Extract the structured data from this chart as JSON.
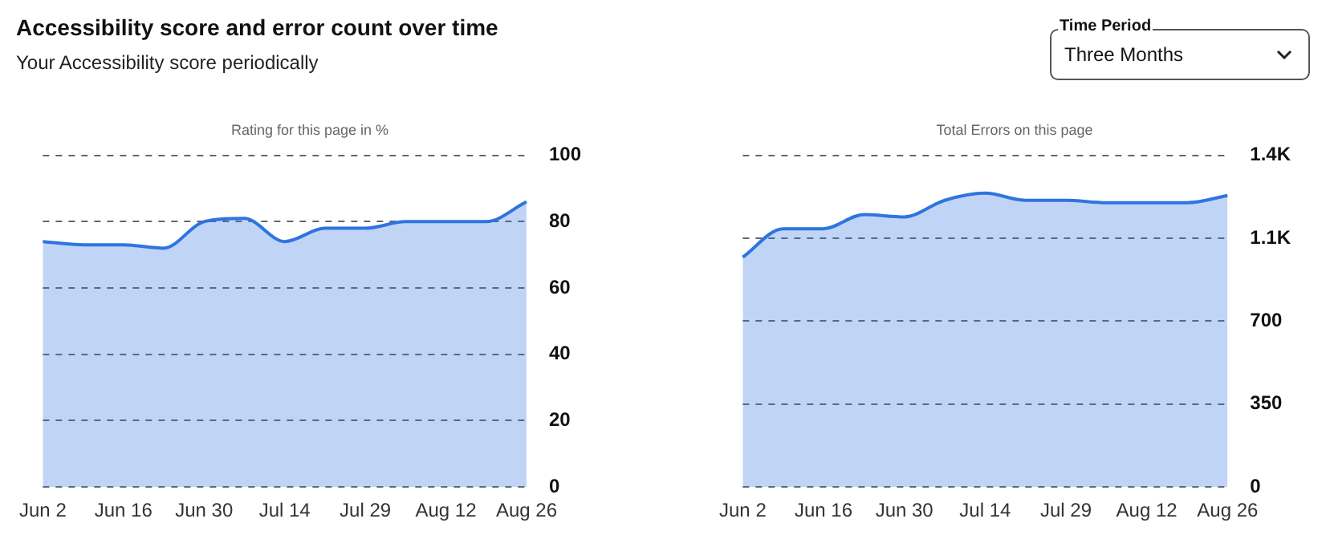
{
  "chart_data": [
    {
      "type": "other",
      "title": "Accessibility score and error count over time",
      "subtitle": "Your Accessibility score periodically",
      "annotations": [
        "Time Period",
        "Three Months"
      ]
    },
    {
      "type": "area",
      "title": "Rating for this page in %",
      "categories": [
        "Jun 2",
        null,
        "Jun 16",
        null,
        "Jun 30",
        null,
        "Jul 14",
        null,
        "Jul 29",
        null,
        "Aug 12",
        null,
        "Aug 26"
      ],
      "series": [
        {
          "color": "#2f74e0",
          "values": [
            74,
            73,
            73,
            72,
            80,
            81,
            74,
            78,
            78,
            80,
            80,
            80,
            86
          ]
        }
      ],
      "ylim": [
        0,
        100
      ],
      "yticks": [
        0,
        20,
        40,
        60,
        80,
        100
      ],
      "grid": "y"
    },
    {
      "type": "area",
      "title": "Total Errors on this page",
      "categories": [
        "Jun 2",
        null,
        "Jun 16",
        null,
        "Jun 30",
        null,
        "Jul 14",
        null,
        "Jul 29",
        null,
        "Aug 12",
        null,
        "Aug 26"
      ],
      "series": [
        {
          "color": "#2f74e0",
          "values": [
            970,
            1090,
            1090,
            1150,
            1140,
            1210,
            1240,
            1210,
            1210,
            1200,
            1200,
            1200,
            1230
          ]
        }
      ],
      "ylim": [
        0,
        1400
      ],
      "yticks": [
        0,
        350,
        700,
        {
          "value": 1050,
          "label": "1.1K"
        },
        {
          "value": 1400,
          "label": "1.4K"
        }
      ],
      "grid": "y"
    }
  ]
}
